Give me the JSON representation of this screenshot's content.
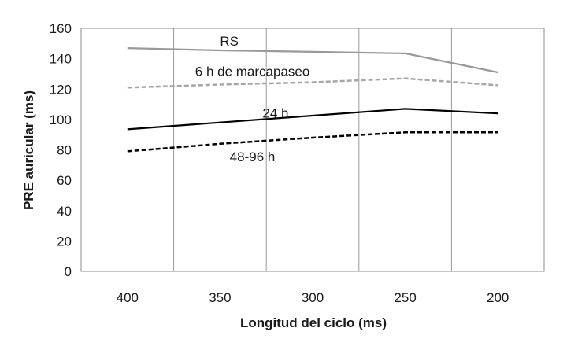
{
  "chart_data": {
    "type": "line",
    "title": "",
    "xlabel": "Longitud del ciclo (ms)",
    "ylabel": "PRE auricular (ms)",
    "categories": [
      "400",
      "350",
      "300",
      "250",
      "200"
    ],
    "ylim": [
      0,
      160
    ],
    "yticks": [
      "0",
      "20",
      "40",
      "60",
      "80",
      "100",
      "120",
      "140",
      "160"
    ],
    "grid": "vertical gridlines between categories",
    "legend": "inline labels",
    "series": [
      {
        "name": "RS",
        "values": [
          147,
          145.5,
          144.5,
          143.5,
          131
        ],
        "color": "#999999",
        "style": "solid"
      },
      {
        "name": "6 h de marcapaseo",
        "values": [
          121,
          123,
          124.5,
          127,
          122.5
        ],
        "color": "#a6a6a6",
        "style": "dashed"
      },
      {
        "name": "24 h",
        "values": [
          93.5,
          98,
          102.5,
          107,
          104
        ],
        "color": "#000000",
        "style": "solid"
      },
      {
        "name": "48-96 h",
        "values": [
          79,
          84,
          88,
          91.5,
          91.5
        ],
        "color": "#000000",
        "style": "dashed"
      }
    ]
  }
}
